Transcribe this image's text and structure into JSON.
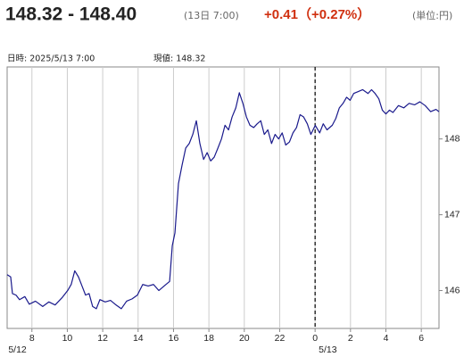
{
  "chart_data": {
    "type": "line",
    "title": "148.32 - 148.40",
    "subtitle": "(13日 7:00)",
    "change": "+0.41（+0.27%）",
    "unit": "(単位:円)",
    "info_datetime": "日時: 2025/5/13  7:00",
    "info_current": "現値: 148.32",
    "x": [
      6.6,
      6.8,
      6.9,
      7.1,
      7.3,
      7.6,
      7.85,
      8.2,
      8.61,
      8.96,
      9.31,
      9.72,
      10.02,
      10.22,
      10.42,
      10.63,
      10.83,
      11.03,
      11.23,
      11.43,
      11.64,
      11.84,
      12.14,
      12.44,
      12.75,
      13.05,
      13.35,
      13.66,
      13.96,
      14.26,
      14.57,
      14.87,
      15.17,
      15.47,
      15.78,
      15.93,
      16.08,
      16.28,
      16.48,
      16.69,
      16.89,
      17.09,
      17.29,
      17.49,
      17.7,
      17.9,
      18.1,
      18.3,
      18.51,
      18.71,
      18.91,
      19.11,
      19.31,
      19.52,
      19.72,
      19.92,
      20.12,
      20.32,
      20.53,
      20.73,
      20.93,
      21.13,
      21.33,
      21.54,
      21.74,
      21.94,
      22.14,
      22.34,
      22.55,
      22.75,
      22.95,
      23.15,
      23.35,
      23.56,
      23.76,
      24.01,
      24.26,
      24.46,
      24.67,
      24.97,
      25.17,
      25.37,
      25.58,
      25.78,
      25.98,
      26.18,
      26.38,
      26.69,
      26.99,
      27.19,
      27.39,
      27.6,
      27.8,
      28.0,
      28.2,
      28.4,
      28.71,
      29.01,
      29.31,
      29.62,
      29.92,
      30.22,
      30.53,
      30.83,
      31.0
    ],
    "series": [
      {
        "color": "#1a1a8c",
        "values": [
          146.21,
          146.18,
          145.96,
          145.94,
          145.88,
          145.92,
          145.82,
          145.86,
          145.79,
          145.85,
          145.81,
          145.91,
          146.0,
          146.08,
          146.26,
          146.18,
          146.06,
          145.94,
          145.96,
          145.79,
          145.76,
          145.88,
          145.85,
          145.87,
          145.81,
          145.76,
          145.86,
          145.89,
          145.94,
          146.08,
          146.06,
          146.08,
          146.0,
          146.06,
          146.12,
          146.59,
          146.76,
          147.41,
          147.65,
          147.88,
          147.94,
          148.06,
          148.24,
          147.94,
          147.73,
          147.82,
          147.71,
          147.76,
          147.88,
          148.0,
          148.18,
          148.12,
          148.29,
          148.41,
          148.61,
          148.47,
          148.29,
          148.18,
          148.15,
          148.2,
          148.24,
          148.06,
          148.12,
          147.94,
          148.06,
          148.0,
          148.08,
          147.92,
          147.96,
          148.08,
          148.15,
          148.32,
          148.29,
          148.2,
          148.06,
          148.18,
          148.08,
          148.2,
          148.12,
          148.18,
          148.27,
          148.41,
          148.47,
          148.55,
          148.51,
          148.6,
          148.62,
          148.65,
          148.6,
          148.65,
          148.6,
          148.53,
          148.38,
          148.33,
          148.38,
          148.35,
          148.44,
          148.41,
          148.47,
          148.45,
          148.49,
          148.44,
          148.36,
          148.39,
          148.36
        ]
      }
    ],
    "xlim": [
      6.6,
      31.0
    ],
    "xticks": [
      8,
      10,
      12,
      14,
      16,
      18,
      20,
      22,
      {
        "value": 24,
        "label": "0"
      },
      {
        "value": 26,
        "label": "2"
      },
      {
        "value": 28,
        "label": "4"
      },
      {
        "value": 30,
        "label": "6"
      }
    ],
    "date_labels": [
      {
        "value": 8,
        "label": "5/12"
      },
      {
        "value": 24,
        "label": "5/13"
      }
    ],
    "ylim": [
      145.5,
      148.95
    ],
    "yticks": [
      146,
      147,
      148
    ],
    "grid": "x"
  }
}
